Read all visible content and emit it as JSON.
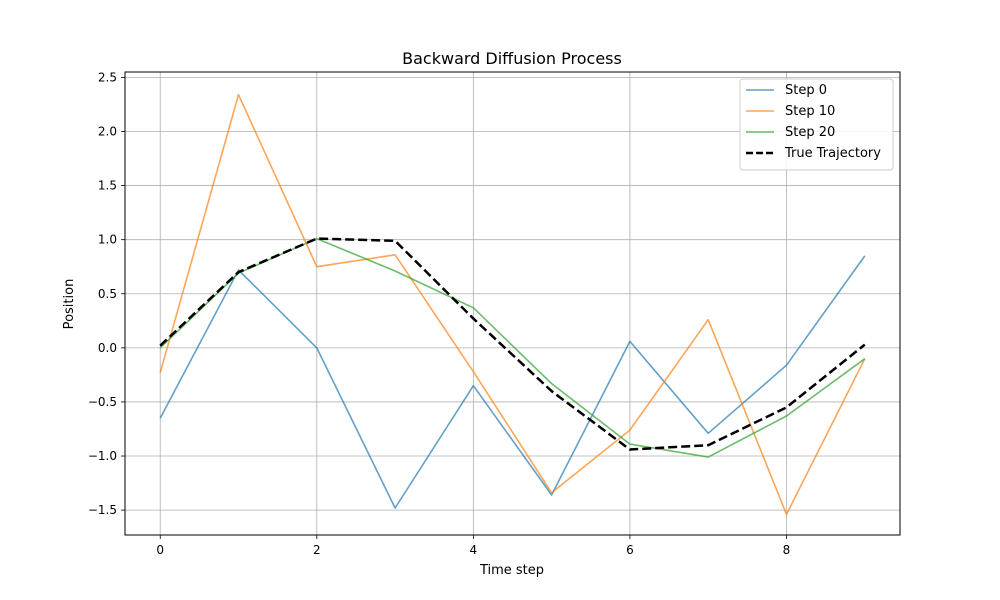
{
  "chart_data": {
    "type": "line",
    "title": "Backward Diffusion Process",
    "xlabel": "Time step",
    "ylabel": "Position",
    "xlim": [
      -0.45,
      9.45
    ],
    "ylim": [
      -1.73,
      2.55
    ],
    "xticks": [
      0,
      2,
      4,
      6,
      8
    ],
    "yticks": [
      -1.5,
      -1.0,
      -0.5,
      0.0,
      0.5,
      1.0,
      1.5,
      2.0,
      2.5
    ],
    "ytick_labels": [
      "−1.5",
      "−1.0",
      "−0.5",
      "0.0",
      "0.5",
      "1.0",
      "1.5",
      "2.0",
      "2.5"
    ],
    "grid": true,
    "legend_position": "upper right",
    "x": [
      0,
      1,
      2,
      3,
      4,
      5,
      6,
      7,
      8,
      9
    ],
    "series": [
      {
        "name": "Step 0",
        "color": "#1f77b4",
        "style": "solid",
        "values": [
          -0.65,
          0.72,
          0.0,
          -1.48,
          -0.35,
          -1.36,
          0.06,
          -0.79,
          -0.16,
          0.85
        ]
      },
      {
        "name": "Step 10",
        "color": "#ff7f0e",
        "style": "solid",
        "values": [
          -0.23,
          2.34,
          0.75,
          0.86,
          -0.22,
          -1.34,
          -0.76,
          0.26,
          -1.54,
          -0.1
        ]
      },
      {
        "name": "Step 20",
        "color": "#2ca02c",
        "style": "solid",
        "values": [
          0.0,
          0.69,
          1.01,
          0.71,
          0.37,
          -0.33,
          -0.89,
          -1.01,
          -0.63,
          -0.1
        ]
      },
      {
        "name": "True Trajectory",
        "color": "#000000",
        "style": "dashed",
        "values": [
          0.02,
          0.7,
          1.01,
          0.99,
          0.27,
          -0.4,
          -0.94,
          -0.9,
          -0.55,
          0.03
        ]
      }
    ]
  }
}
